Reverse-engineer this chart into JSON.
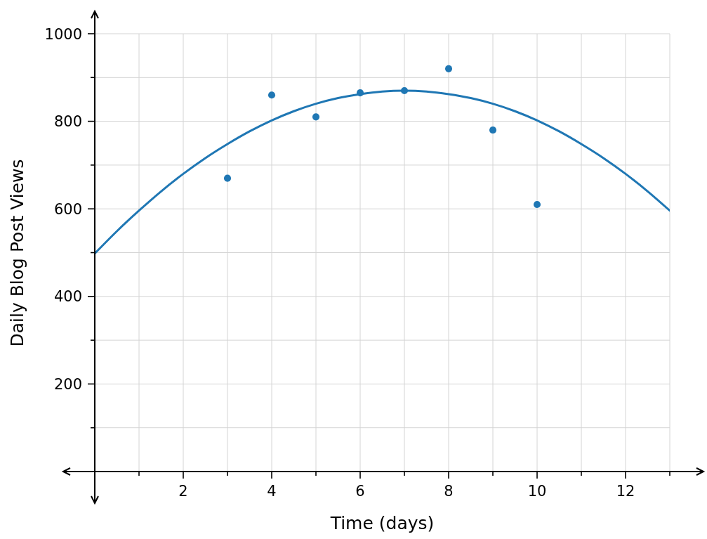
{
  "chart_data": {
    "type": "scatter",
    "xlabel": "Time (days)",
    "ylabel": "Daily Blog Post Views",
    "xlim": [
      0,
      13
    ],
    "xticks": [
      {
        "value": 1,
        "label": null
      },
      2,
      {
        "value": 3,
        "label": null
      },
      4,
      {
        "value": 5,
        "label": null
      },
      6,
      {
        "value": 7,
        "label": null
      },
      8,
      {
        "value": 9,
        "label": null
      },
      10,
      {
        "value": 11,
        "label": null
      },
      12,
      {
        "value": 13,
        "label": null
      }
    ],
    "ylim": [
      0,
      1000
    ],
    "yticks": [
      {
        "value": 100,
        "label": null
      },
      200,
      {
        "value": 300,
        "label": null
      },
      400,
      {
        "value": 500,
        "label": null
      },
      600,
      {
        "value": 700,
        "label": null
      },
      800,
      {
        "value": 900,
        "label": null
      },
      1000
    ],
    "grid": true,
    "series": [
      {
        "color": "#1f77b4",
        "marker": "circle",
        "x": [
          3,
          4,
          5,
          6,
          7,
          8,
          9,
          10
        ],
        "values": [
          670,
          860,
          810,
          865,
          870,
          920,
          780,
          610
        ]
      },
      {
        "type": "line",
        "color": "#1f77b4",
        "x": [
          0,
          0.5,
          1,
          1.5,
          2,
          2.5,
          3,
          3.5,
          4,
          4.5,
          5,
          5.5,
          6,
          6.5,
          7,
          7.5,
          8,
          8.5,
          9,
          9.5,
          10,
          10.5,
          11,
          11.5,
          12,
          12.5,
          13
        ],
        "values": [
          498,
          549,
          596,
          640,
          680,
          716,
          748,
          777,
          802,
          823,
          840,
          853,
          862,
          868,
          870,
          868,
          862,
          853,
          840,
          823,
          802,
          777,
          748,
          716,
          680,
          640,
          596
        ]
      }
    ]
  }
}
